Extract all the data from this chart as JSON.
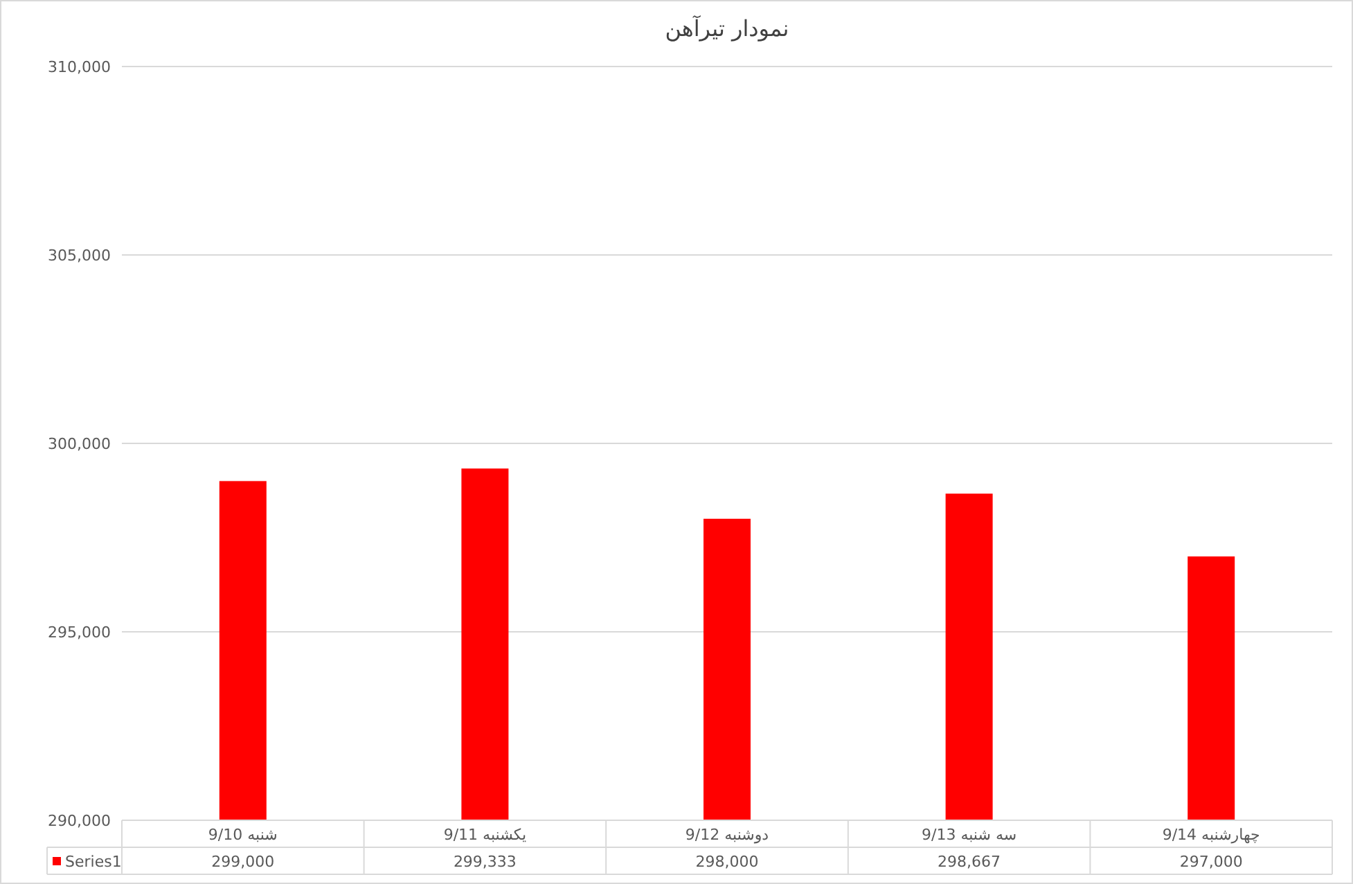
{
  "chart_data": {
    "type": "bar",
    "title": "نمودار تیرآهن",
    "categories": [
      "شنبه 9/10",
      "یکشنبه 9/11",
      "دوشنبه 9/12",
      "سه شنبه 9/13",
      "چهارشنبه 9/14"
    ],
    "series": [
      {
        "name": "Series1",
        "color": "#ff0000",
        "values": [
          299000,
          299333,
          298000,
          298667,
          297000
        ],
        "value_labels": [
          "299,000",
          "299,333",
          "298,000",
          "298,667",
          "297,000"
        ]
      }
    ],
    "ylim": [
      290000,
      310000
    ],
    "yticks": [
      {
        "value": 290000,
        "label": "290,000"
      },
      {
        "value": 295000,
        "label": "295,000"
      },
      {
        "value": 300000,
        "label": "300,000"
      },
      {
        "value": 305000,
        "label": "305,000"
      },
      {
        "value": 310000,
        "label": "310,000"
      }
    ],
    "grid": "y",
    "legend": "bottom"
  }
}
